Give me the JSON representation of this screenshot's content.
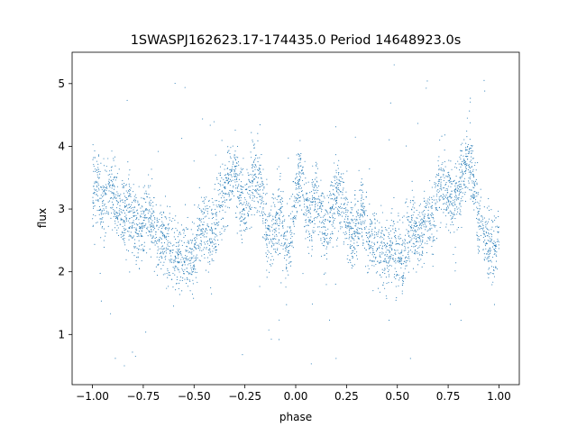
{
  "chart_data": {
    "type": "scatter",
    "title": "1SWASPJ162623.17-174435.0 Period 14648923.0s",
    "xlabel": "phase",
    "ylabel": "flux",
    "xlim": [
      -1.1,
      1.1
    ],
    "ylim": [
      0.2,
      5.5
    ],
    "x_ticks": [
      -1.0,
      -0.75,
      -0.5,
      -0.25,
      0.0,
      0.25,
      0.5,
      0.75,
      1.0
    ],
    "x_tick_labels": [
      "−1.00",
      "−0.75",
      "−0.50",
      "−0.25",
      "0.00",
      "0.25",
      "0.50",
      "0.75",
      "1.00"
    ],
    "y_ticks": [
      1,
      2,
      3,
      4,
      5
    ],
    "y_tick_labels": [
      "1",
      "2",
      "3",
      "4",
      "5"
    ],
    "grid": false,
    "marker_color": "#1f77b4",
    "trend_points": {
      "x": [
        -1.0,
        -0.975,
        -0.95,
        -0.925,
        -0.9,
        -0.875,
        -0.85,
        -0.825,
        -0.8,
        -0.775,
        -0.75,
        -0.725,
        -0.7,
        -0.675,
        -0.65,
        -0.625,
        -0.6,
        -0.575,
        -0.55,
        -0.525,
        -0.5,
        -0.475,
        -0.45,
        -0.425,
        -0.4,
        -0.375,
        -0.35,
        -0.325,
        -0.3,
        -0.275,
        -0.25,
        -0.225,
        -0.2,
        -0.175,
        -0.15,
        -0.125,
        -0.1,
        -0.075,
        -0.05,
        -0.025,
        0.0,
        0.025,
        0.05,
        0.075,
        0.1,
        0.125,
        0.15,
        0.175,
        0.2,
        0.225,
        0.25,
        0.275,
        0.3,
        0.325,
        0.35,
        0.375,
        0.4,
        0.425,
        0.45,
        0.475,
        0.5,
        0.525,
        0.55,
        0.575,
        0.6,
        0.625,
        0.65,
        0.675,
        0.7,
        0.725,
        0.75,
        0.775,
        0.8,
        0.825,
        0.85,
        0.875,
        0.9,
        0.925,
        0.95,
        0.975,
        1.0
      ],
      "y": [
        3.3,
        3.4,
        3.0,
        3.2,
        3.3,
        3.0,
        2.8,
        3.1,
        2.9,
        2.6,
        2.8,
        2.9,
        2.7,
        2.5,
        2.6,
        2.4,
        2.3,
        2.2,
        2.4,
        2.1,
        2.3,
        2.6,
        2.8,
        2.5,
        2.7,
        3.0,
        3.3,
        3.5,
        3.6,
        3.2,
        3.0,
        3.3,
        3.6,
        3.4,
        2.8,
        2.5,
        2.7,
        3.0,
        2.2,
        2.6,
        3.3,
        3.6,
        3.0,
        2.8,
        3.3,
        2.9,
        2.6,
        3.0,
        3.2,
        3.1,
        2.8,
        2.6,
        2.7,
        3.0,
        2.6,
        2.5,
        2.4,
        2.3,
        2.2,
        2.5,
        2.3,
        2.2,
        2.6,
        2.8,
        2.5,
        2.7,
        2.9,
        2.7,
        3.3,
        3.4,
        3.2,
        3.0,
        3.3,
        3.6,
        3.8,
        3.4,
        2.8,
        2.7,
        2.4,
        2.3,
        2.6
      ]
    }
  }
}
